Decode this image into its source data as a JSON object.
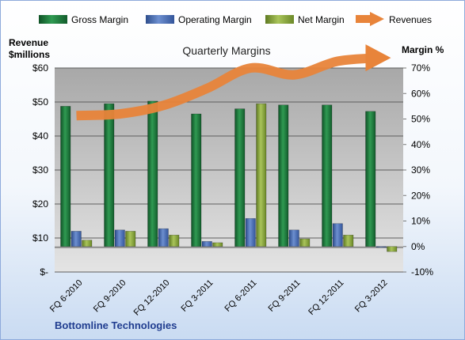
{
  "chart_data": {
    "type": "bar",
    "title": "Quarterly Margins",
    "footer": "Bottomline Technologies",
    "left_axis": {
      "title_line1": "Revenue",
      "title_line2": "$millions",
      "min": 0,
      "max": 60,
      "ticks": [
        0,
        10,
        20,
        30,
        40,
        50,
        60
      ],
      "tick_labels": [
        "$-",
        "$10",
        "$20",
        "$30",
        "$40",
        "$50",
        "$60"
      ]
    },
    "right_axis": {
      "title": "Margin %",
      "min": -10,
      "max": 70,
      "ticks": [
        -10,
        0,
        10,
        20,
        30,
        40,
        50,
        60,
        70
      ],
      "tick_labels": [
        "-10%",
        "0%",
        "10%",
        "20%",
        "30%",
        "40%",
        "50%",
        "60%",
        "70%"
      ]
    },
    "categories": [
      "FQ 6-2010",
      "FQ 9-2010",
      "FQ 12-2010",
      "FQ 3-2011",
      "FQ 6-2011",
      "FQ 9-2011",
      "FQ 12-2011",
      "FQ 3-2012"
    ],
    "series": [
      {
        "name": "Gross Margin",
        "axis": "right",
        "type": "bar",
        "color": "#1e7a3c",
        "values": [
          55,
          56,
          57,
          52,
          54,
          55.5,
          55.5,
          53
        ]
      },
      {
        "name": "Operating Margin",
        "axis": "right",
        "type": "bar",
        "color": "#4a6fb5",
        "values": [
          6,
          6.5,
          7,
          2,
          11,
          6.5,
          9,
          0
        ]
      },
      {
        "name": "Net Margin",
        "axis": "right",
        "type": "bar",
        "color": "#8aaa3a",
        "values": [
          2.5,
          6,
          4.5,
          1.5,
          56,
          3,
          4.5,
          -2
        ]
      },
      {
        "name": "Revenues",
        "axis": "left",
        "type": "line",
        "color": "#e8843a",
        "values": [
          46,
          46.5,
          49,
          54,
          60,
          58,
          62,
          63
        ]
      }
    ],
    "grid": true,
    "legend_position": "top"
  }
}
